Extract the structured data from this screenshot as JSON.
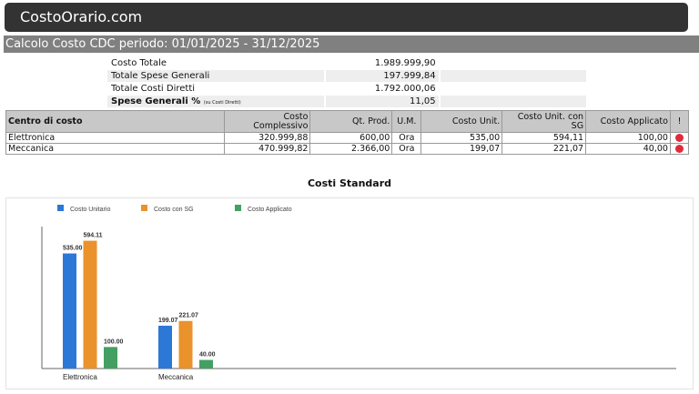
{
  "header": {
    "title": "CostoOrario.com"
  },
  "subheader": {
    "title": "Calcolo Costo CDC periodo: 01/01/2025 - 31/12/2025"
  },
  "summary": [
    {
      "label": "Costo Totale",
      "value": "1.989.999,90"
    },
    {
      "label": "Totale Spese Generali",
      "value": "197.999,84"
    },
    {
      "label": "Totale Costi Diretti",
      "value": "1.792.000,06"
    },
    {
      "label": "Spese Generali %",
      "note": "(su Costi Diretti)",
      "value": "11,05"
    }
  ],
  "table": {
    "headers": [
      "Centro di costo",
      "Costo Complessivo",
      "Qt. Prod.",
      "U.M.",
      "Costo Unit.",
      "Costo Unit. con SG",
      "Costo Applicato",
      "!"
    ],
    "rows": [
      {
        "centro": "Elettronica",
        "complessivo": "320.999,88",
        "qt": "600,00",
        "um": "Ora",
        "unit": "535,00",
        "unit_sg": "594,11",
        "applicato": "100,00",
        "status": "red"
      },
      {
        "centro": "Meccanica",
        "complessivo": "470.999,82",
        "qt": "2.366,00",
        "um": "Ora",
        "unit": "199,07",
        "unit_sg": "221,07",
        "applicato": "40,00",
        "status": "red"
      }
    ]
  },
  "chart_data": {
    "type": "bar",
    "title": "Costi Standard",
    "categories": [
      "Elettronica",
      "Meccanica"
    ],
    "series": [
      {
        "name": "Costo Unitario",
        "color": "#2b78d6",
        "values": [
          535.0,
          199.07
        ],
        "labels": [
          "535.00",
          "199.07"
        ]
      },
      {
        "name": "Costo con SG",
        "color": "#ea922b",
        "values": [
          594.11,
          221.07
        ],
        "labels": [
          "594.11",
          "221.07"
        ]
      },
      {
        "name": "Costo Applicato",
        "color": "#43a062",
        "values": [
          100.0,
          40.0
        ],
        "labels": [
          "100.00",
          "40.00"
        ]
      }
    ],
    "ylim": [
      0,
      660
    ],
    "legend": "top-left",
    "grid": false
  }
}
